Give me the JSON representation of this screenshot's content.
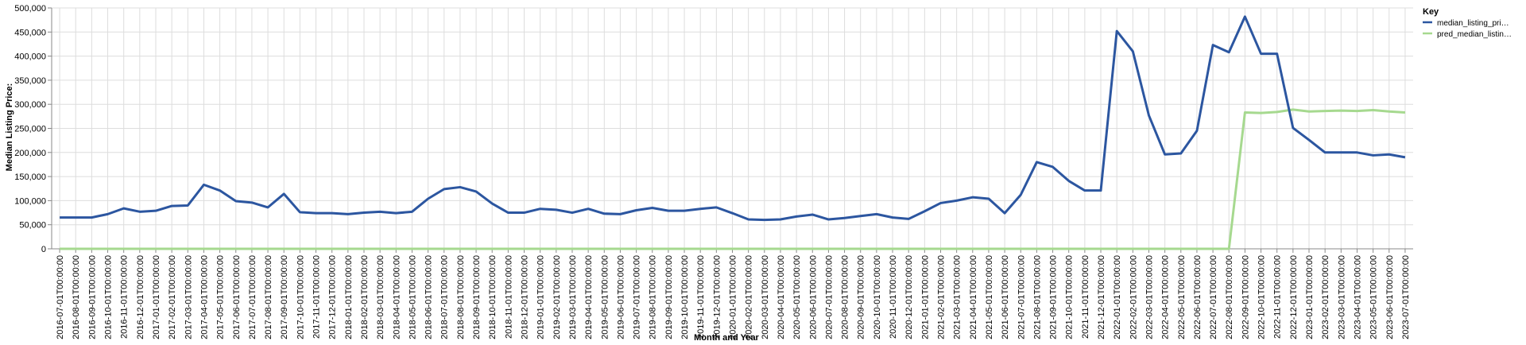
{
  "chart_data": {
    "type": "line",
    "xlabel": "Month and Year",
    "ylabel": "Median Listing Price:",
    "ylim": [
      0,
      500000
    ],
    "yticks": [
      "0",
      "50,000",
      "100,000",
      "150,000",
      "200,000",
      "250,000",
      "300,000",
      "350,000",
      "400,000",
      "450,000",
      "500,000"
    ],
    "grid": true,
    "legend": {
      "title": "Key",
      "placement": "top-right",
      "entries": [
        "median_listing_pri…",
        "pred_median_listin…"
      ]
    },
    "categories": [
      "2016-07-01T00:00:00",
      "2016-08-01T00:00:00",
      "2016-09-01T00:00:00",
      "2016-10-01T00:00:00",
      "2016-11-01T00:00:00",
      "2016-12-01T00:00:00",
      "2017-01-01T00:00:00",
      "2017-02-01T00:00:00",
      "2017-03-01T00:00:00",
      "2017-04-01T00:00:00",
      "2017-05-01T00:00:00",
      "2017-06-01T00:00:00",
      "2017-07-01T00:00:00",
      "2017-08-01T00:00:00",
      "2017-09-01T00:00:00",
      "2017-10-01T00:00:00",
      "2017-11-01T00:00:00",
      "2017-12-01T00:00:00",
      "2018-01-01T00:00:00",
      "2018-02-01T00:00:00",
      "2018-03-01T00:00:00",
      "2018-04-01T00:00:00",
      "2018-05-01T00:00:00",
      "2018-06-01T00:00:00",
      "2018-07-01T00:00:00",
      "2018-08-01T00:00:00",
      "2018-09-01T00:00:00",
      "2018-10-01T00:00:00",
      "2018-11-01T00:00:00",
      "2018-12-01T00:00:00",
      "2019-01-01T00:00:00",
      "2019-02-01T00:00:00",
      "2019-03-01T00:00:00",
      "2019-04-01T00:00:00",
      "2019-05-01T00:00:00",
      "2019-06-01T00:00:00",
      "2019-07-01T00:00:00",
      "2019-08-01T00:00:00",
      "2019-09-01T00:00:00",
      "2019-10-01T00:00:00",
      "2019-11-01T00:00:00",
      "2019-12-01T00:00:00",
      "2020-01-01T00:00:00",
      "2020-02-01T00:00:00",
      "2020-03-01T00:00:00",
      "2020-04-01T00:00:00",
      "2020-05-01T00:00:00",
      "2020-06-01T00:00:00",
      "2020-07-01T00:00:00",
      "2020-08-01T00:00:00",
      "2020-09-01T00:00:00",
      "2020-10-01T00:00:00",
      "2020-11-01T00:00:00",
      "2020-12-01T00:00:00",
      "2021-01-01T00:00:00",
      "2021-02-01T00:00:00",
      "2021-03-01T00:00:00",
      "2021-04-01T00:00:00",
      "2021-05-01T00:00:00",
      "2021-06-01T00:00:00",
      "2021-07-01T00:00:00",
      "2021-08-01T00:00:00",
      "2021-09-01T00:00:00",
      "2021-10-01T00:00:00",
      "2021-11-01T00:00:00",
      "2021-12-01T00:00:00",
      "2022-01-01T00:00:00",
      "2022-02-01T00:00:00",
      "2022-03-01T00:00:00",
      "2022-04-01T00:00:00",
      "2022-05-01T00:00:00",
      "2022-06-01T00:00:00",
      "2022-07-01T00:00:00",
      "2022-08-01T00:00:00",
      "2022-09-01T00:00:00",
      "2022-10-01T00:00:00",
      "2022-11-01T00:00:00",
      "2022-12-01T00:00:00",
      "2023-01-01T00:00:00",
      "2023-02-01T00:00:00",
      "2023-03-01T00:00:00",
      "2023-04-01T00:00:00",
      "2023-05-01T00:00:00",
      "2023-06-01T00:00:00",
      "2023-07-01T00:00:00"
    ],
    "series": [
      {
        "name": "median_listing_pri…",
        "color": "#2c56a0",
        "values": [
          65000,
          65000,
          65000,
          72000,
          84000,
          77000,
          79000,
          89000,
          90000,
          133000,
          121000,
          99000,
          96000,
          86000,
          114000,
          76000,
          74000,
          74000,
          72000,
          75000,
          77000,
          74000,
          77000,
          104000,
          124000,
          128000,
          119000,
          94000,
          75000,
          75000,
          83000,
          81000,
          75000,
          83000,
          73000,
          72000,
          80000,
          85000,
          79000,
          79000,
          83000,
          86000,
          74000,
          61000,
          60000,
          61000,
          67000,
          71000,
          61000,
          64000,
          68000,
          72000,
          65000,
          62000,
          78000,
          95000,
          100000,
          107000,
          104000,
          74000,
          112000,
          180000,
          170000,
          141000,
          121000,
          121000,
          452000,
          410000,
          277000,
          196000,
          198000,
          245000,
          423000,
          408000,
          482000,
          405000,
          405000,
          251000,
          226000,
          200000,
          200000,
          200000,
          194000,
          196000,
          190000
        ]
      },
      {
        "name": "pred_median_listin…",
        "color": "#a6d98f",
        "values": [
          0,
          0,
          0,
          0,
          0,
          0,
          0,
          0,
          0,
          0,
          0,
          0,
          0,
          0,
          0,
          0,
          0,
          0,
          0,
          0,
          0,
          0,
          0,
          0,
          0,
          0,
          0,
          0,
          0,
          0,
          0,
          0,
          0,
          0,
          0,
          0,
          0,
          0,
          0,
          0,
          0,
          0,
          0,
          0,
          0,
          0,
          0,
          0,
          0,
          0,
          0,
          0,
          0,
          0,
          0,
          0,
          0,
          0,
          0,
          0,
          0,
          0,
          0,
          0,
          0,
          0,
          0,
          0,
          0,
          0,
          0,
          0,
          0,
          0,
          283000,
          282000,
          284000,
          289000,
          285000,
          286000,
          287000,
          286000,
          288000,
          285000,
          283000
        ]
      }
    ]
  }
}
